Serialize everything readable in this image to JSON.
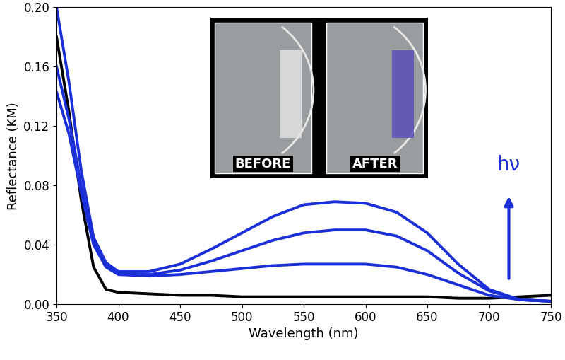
{
  "chart_data": {
    "type": "line",
    "x_label": "Wavelength (nm)",
    "y_label": "Reflectance (KM)",
    "x": [
      350,
      360,
      370,
      380,
      390,
      400,
      425,
      450,
      475,
      500,
      525,
      550,
      575,
      600,
      625,
      650,
      675,
      700,
      725,
      750
    ],
    "series": [
      {
        "color": "#000000",
        "values": [
          0.18,
          0.13,
          0.07,
          0.025,
          0.01,
          0.008,
          0.007,
          0.006,
          0.006,
          0.005,
          0.005,
          0.005,
          0.005,
          0.005,
          0.005,
          0.005,
          0.004,
          0.004,
          0.005,
          0.006
        ]
      },
      {
        "color": "#1a2fd8",
        "values": [
          0.143,
          0.115,
          0.075,
          0.04,
          0.025,
          0.02,
          0.019,
          0.02,
          0.022,
          0.024,
          0.026,
          0.027,
          0.027,
          0.027,
          0.025,
          0.02,
          0.013,
          0.006,
          0.003,
          0.002
        ]
      },
      {
        "color": "#1a2fd8",
        "values": [
          0.16,
          0.125,
          0.08,
          0.042,
          0.026,
          0.021,
          0.02,
          0.023,
          0.029,
          0.036,
          0.043,
          0.048,
          0.05,
          0.05,
          0.046,
          0.036,
          0.021,
          0.009,
          0.003,
          0.002
        ]
      },
      {
        "color": "#1a2fd8",
        "values": [
          0.2,
          0.15,
          0.09,
          0.045,
          0.028,
          0.022,
          0.022,
          0.027,
          0.037,
          0.048,
          0.059,
          0.067,
          0.069,
          0.068,
          0.062,
          0.048,
          0.027,
          0.01,
          0.003,
          0.002
        ]
      }
    ],
    "xlim": [
      350,
      750
    ],
    "ylim": [
      0,
      0.2
    ],
    "xticks": [
      350,
      400,
      450,
      500,
      550,
      600,
      650,
      700,
      750
    ],
    "yticks": [
      {
        "value": 0,
        "label": "0.00"
      },
      {
        "value": 0.04,
        "label": "0.04"
      },
      {
        "value": 0.08,
        "label": "0.08"
      },
      {
        "value": 0.12,
        "label": "0.12"
      },
      {
        "value": 0.16,
        "label": "0.16"
      },
      {
        "value": 0.2,
        "label": "0.20"
      }
    ],
    "annotations": [
      "BEFORE",
      "AFTER",
      "hν"
    ]
  }
}
